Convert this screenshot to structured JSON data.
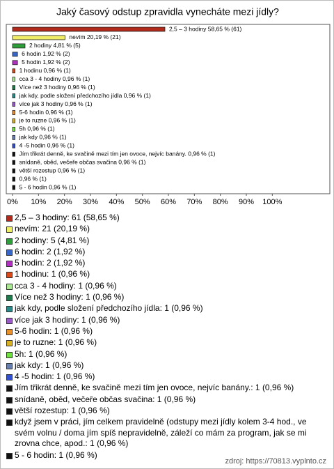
{
  "chart_data": {
    "type": "bar",
    "orientation": "horizontal",
    "title": "Jaký časový odstup zpravidla vynecháte mezi jídly?",
    "categories": [
      "2,5 – 3 hodiny",
      "nevím",
      "2 hodiny",
      "6 hodin",
      "5 hodin",
      "1 hodinu",
      "cca 3 - 4 hodiny",
      "Více než 3 hodiny",
      "jak kdy, podle složení předchozího jídla",
      "více jak 3 hodiny",
      "5-6 hodin",
      "je to ruzne",
      "5h",
      "jak kdy",
      "4 -5 hodin",
      "Jím třikrát denně, ke svačině mezi tím jen ovoce, nejvíc banány.",
      "snídaně, oběd, večeře občas svačina",
      "větší rozestup",
      null,
      "5 - 6 hodin"
    ],
    "values": [
      58.65,
      20.19,
      4.81,
      1.92,
      1.92,
      0.96,
      0.96,
      0.96,
      0.96,
      0.96,
      0.96,
      0.96,
      0.96,
      0.96,
      0.96,
      0.96,
      0.96,
      0.96,
      0.96,
      0.96
    ],
    "value_labels": [
      "2,5 – 3 hodiny 58,65 % (61)",
      "nevím 20,19 % (21)",
      "2 hodiny 4,81 % (5)",
      "6 hodin 1,92 % (2)",
      "5 hodin 1,92 % (2)",
      "1 hodinu 0,96 % (1)",
      "cca 3 - 4 hodiny 0,96 % (1)",
      "Více než 3 hodiny 0,96 % (1)",
      "jak kdy, podle složení předchozího jídla 0,96 % (1)",
      "více jak 3 hodiny 0,96 % (1)",
      "5-6 hodin 0,96 % (1)",
      "je to ruzne 0,96 % (1)",
      "5h 0,96 % (1)",
      "jak kdy 0,96 % (1)",
      "4 -5 hodin 0,96 % (1)",
      "Jím třikrát denně, ke svačině mezi tím jen ovoce, nejvíc banány. 0,96 % (1)",
      "snídaně, oběd, večeře občas svačina 0,96 % (1)",
      "větší rozestup 0,96 % (1)",
      "0,96 % (1)",
      "5 - 6 hodin 0,96 % (1)"
    ],
    "colors": [
      "#b22a1a",
      "#f0ee66",
      "#2e9e3a",
      "#3566c8",
      "#b030c0",
      "#d84a1a",
      "#a8e890",
      "#1e7a4a",
      "#2a8a8a",
      "#9a5ac8",
      "#e8902a",
      "#d8b020",
      "#70e040",
      "#6880b0",
      "#3050d0",
      "#111111",
      "#111111",
      "#111111",
      "#111111",
      "#111111"
    ],
    "legend": [
      "2,5 – 3 hodiny: 61 (58,65 %)",
      "nevím: 21 (20,19 %)",
      "2 hodiny: 5 (4,81 %)",
      "6 hodin: 2 (1,92 %)",
      "5 hodin: 2 (1,92 %)",
      "1 hodinu: 1 (0,96 %)",
      "cca 3 - 4 hodiny: 1 (0,96 %)",
      "Více než 3 hodiny: 1 (0,96 %)",
      "jak kdy, podle složení předchozího jídla: 1 (0,96 %)",
      "více jak 3 hodiny: 1 (0,96 %)",
      "5-6 hodin: 1 (0,96 %)",
      "je to ruzne: 1 (0,96 %)",
      "5h: 1 (0,96 %)",
      "jak kdy: 1 (0,96 %)",
      "4 -5 hodin: 1 (0,96 %)",
      "Jím třikrát denně, ke svačině mezi tím jen ovoce, nejvíc banány.: 1 (0,96 %)",
      "snídaně, oběd, večeře občas svačina: 1 (0,96 %)",
      "větší rozestup: 1 (0,96 %)",
      "když jsem v práci, jím celkem pravidelně (odstupy mezi jídly kolem 3-4 hod., ve svém volnu / doma jím spíš nepravidelně, záleží co mám za program, jak se mi zrovna chce, apod.: 1 (0,96 %)",
      "5 - 6 hodin: 1 (0,96 %)"
    ],
    "xlim": [
      0,
      120
    ],
    "xticks": [
      {
        "value": 0,
        "label": "0%"
      },
      {
        "value": 10,
        "label": "10%"
      },
      {
        "value": 20,
        "label": "20%"
      },
      {
        "value": 30,
        "label": "30%"
      },
      {
        "value": 40,
        "label": "40%"
      },
      {
        "value": 50,
        "label": "50%"
      },
      {
        "value": 60,
        "label": "60%"
      },
      {
        "value": 70,
        "label": "70%"
      },
      {
        "value": 80,
        "label": "80%"
      },
      {
        "value": 90,
        "label": "90%"
      },
      {
        "value": 100,
        "label": "100%"
      }
    ],
    "grid": false,
    "source": "zdroj: https://70813.vyplnto.cz"
  }
}
